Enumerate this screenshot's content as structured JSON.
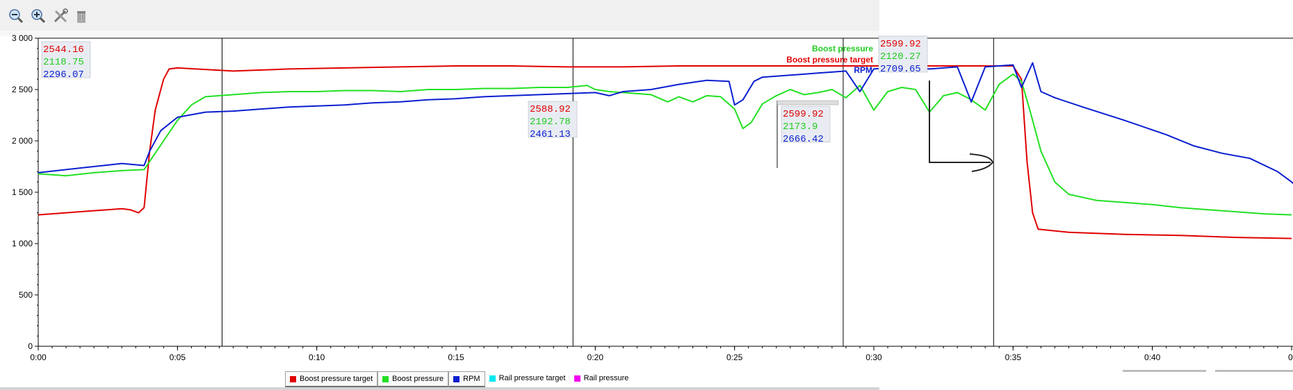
{
  "toolbar": {
    "buttons": [
      "zoom-out",
      "zoom-in",
      "settings",
      "delete"
    ]
  },
  "chart_data": {
    "type": "line",
    "xlabel": "",
    "ylabel": "",
    "xlim": [
      0,
      45
    ],
    "ylim": [
      0,
      3000
    ],
    "x_ticks": [
      {
        "v": 0,
        "label": "0:00"
      },
      {
        "v": 5,
        "label": "0:05"
      },
      {
        "v": 10,
        "label": "0:10"
      },
      {
        "v": 15,
        "label": "0:15"
      },
      {
        "v": 20,
        "label": "0:20"
      },
      {
        "v": 25,
        "label": "0:25"
      },
      {
        "v": 30,
        "label": "0:30"
      },
      {
        "v": 35,
        "label": "0:35"
      },
      {
        "v": 40,
        "label": "0:40"
      },
      {
        "v": 45,
        "label": "0:"
      }
    ],
    "y_ticks": [
      {
        "v": 0,
        "label": "0"
      },
      {
        "v": 500,
        "label": "500"
      },
      {
        "v": 1000,
        "label": "1 000"
      },
      {
        "v": 1500,
        "label": "1 500"
      },
      {
        "v": 2000,
        "label": "2 000"
      },
      {
        "v": 2500,
        "label": "2 500"
      },
      {
        "v": 3000,
        "label": "3 000"
      }
    ],
    "grid": false,
    "series": [
      {
        "name": "Boost pressure target",
        "color": "#e00000",
        "points": [
          [
            0,
            1280
          ],
          [
            1,
            1300
          ],
          [
            2,
            1320
          ],
          [
            2.5,
            1330
          ],
          [
            3,
            1340
          ],
          [
            3.3,
            1330
          ],
          [
            3.6,
            1300
          ],
          [
            3.8,
            1350
          ],
          [
            4.0,
            1900
          ],
          [
            4.2,
            2300
          ],
          [
            4.5,
            2600
          ],
          [
            4.7,
            2700
          ],
          [
            5,
            2710
          ],
          [
            7,
            2680
          ],
          [
            9,
            2700
          ],
          [
            11,
            2710
          ],
          [
            13,
            2720
          ],
          [
            15,
            2730
          ],
          [
            17,
            2730
          ],
          [
            19,
            2720
          ],
          [
            20,
            2720
          ],
          [
            21,
            2720
          ],
          [
            23,
            2730
          ],
          [
            25,
            2730
          ],
          [
            27,
            2730
          ],
          [
            29,
            2730
          ],
          [
            31,
            2730
          ],
          [
            33,
            2730
          ],
          [
            35,
            2730
          ],
          [
            35.3,
            2600
          ],
          [
            35.5,
            1800
          ],
          [
            35.7,
            1300
          ],
          [
            35.9,
            1140
          ],
          [
            37,
            1110
          ],
          [
            39,
            1090
          ],
          [
            41,
            1080
          ],
          [
            43,
            1060
          ],
          [
            45,
            1050
          ]
        ]
      },
      {
        "name": "Boost pressure",
        "color": "#22e022",
        "points": [
          [
            0,
            1680
          ],
          [
            1,
            1660
          ],
          [
            2,
            1690
          ],
          [
            3,
            1710
          ],
          [
            3.8,
            1720
          ],
          [
            4.0,
            1800
          ],
          [
            4.5,
            2000
          ],
          [
            5,
            2200
          ],
          [
            5.5,
            2350
          ],
          [
            6,
            2430
          ],
          [
            7,
            2450
          ],
          [
            8,
            2470
          ],
          [
            9,
            2480
          ],
          [
            10,
            2480
          ],
          [
            11,
            2490
          ],
          [
            12,
            2490
          ],
          [
            13,
            2480
          ],
          [
            14,
            2500
          ],
          [
            15,
            2500
          ],
          [
            16,
            2510
          ],
          [
            17,
            2510
          ],
          [
            18,
            2520
          ],
          [
            19,
            2520
          ],
          [
            19.7,
            2540
          ],
          [
            20,
            2500
          ],
          [
            20.5,
            2480
          ],
          [
            21,
            2470
          ],
          [
            22,
            2450
          ],
          [
            22.6,
            2380
          ],
          [
            23,
            2430
          ],
          [
            23.5,
            2380
          ],
          [
            24,
            2440
          ],
          [
            24.5,
            2430
          ],
          [
            25,
            2310
          ],
          [
            25.3,
            2120
          ],
          [
            25.6,
            2180
          ],
          [
            26,
            2360
          ],
          [
            26.5,
            2440
          ],
          [
            27,
            2500
          ],
          [
            27.5,
            2450
          ],
          [
            28,
            2470
          ],
          [
            28.5,
            2500
          ],
          [
            29,
            2420
          ],
          [
            29.5,
            2540
          ],
          [
            30,
            2300
          ],
          [
            30.5,
            2480
          ],
          [
            31,
            2520
          ],
          [
            31.5,
            2500
          ],
          [
            32,
            2280
          ],
          [
            32.5,
            2440
          ],
          [
            33,
            2470
          ],
          [
            33.5,
            2400
          ],
          [
            34,
            2300
          ],
          [
            34.5,
            2550
          ],
          [
            35,
            2650
          ],
          [
            35.3,
            2580
          ],
          [
            35.6,
            2300
          ],
          [
            36,
            1900
          ],
          [
            36.5,
            1600
          ],
          [
            37,
            1480
          ],
          [
            38,
            1420
          ],
          [
            39,
            1400
          ],
          [
            40,
            1380
          ],
          [
            41,
            1350
          ],
          [
            42,
            1330
          ],
          [
            43,
            1310
          ],
          [
            44,
            1290
          ],
          [
            45,
            1280
          ]
        ]
      },
      {
        "name": "RPM",
        "color": "#0a1ed0",
        "points": [
          [
            0,
            1690
          ],
          [
            1,
            1720
          ],
          [
            2,
            1750
          ],
          [
            3,
            1780
          ],
          [
            3.8,
            1760
          ],
          [
            4.0,
            1900
          ],
          [
            4.4,
            2100
          ],
          [
            5,
            2230
          ],
          [
            6,
            2280
          ],
          [
            7,
            2290
          ],
          [
            8,
            2310
          ],
          [
            9,
            2330
          ],
          [
            10,
            2340
          ],
          [
            11,
            2350
          ],
          [
            12,
            2370
          ],
          [
            13,
            2380
          ],
          [
            14,
            2400
          ],
          [
            15,
            2410
          ],
          [
            16,
            2430
          ],
          [
            17,
            2440
          ],
          [
            18,
            2450
          ],
          [
            19,
            2460
          ],
          [
            20,
            2470
          ],
          [
            20.5,
            2440
          ],
          [
            21,
            2480
          ],
          [
            22,
            2500
          ],
          [
            23,
            2550
          ],
          [
            24,
            2590
          ],
          [
            24.8,
            2580
          ],
          [
            25,
            2350
          ],
          [
            25.3,
            2400
          ],
          [
            25.7,
            2580
          ],
          [
            26,
            2620
          ],
          [
            27,
            2640
          ],
          [
            28,
            2660
          ],
          [
            29,
            2680
          ],
          [
            29.5,
            2480
          ],
          [
            30,
            2700
          ],
          [
            31,
            2720
          ],
          [
            32,
            2700
          ],
          [
            33,
            2720
          ],
          [
            33.5,
            2380
          ],
          [
            34,
            2720
          ],
          [
            35,
            2740
          ],
          [
            35.3,
            2520
          ],
          [
            35.7,
            2760
          ],
          [
            36,
            2480
          ],
          [
            36.5,
            2420
          ],
          [
            37.5,
            2330
          ],
          [
            39,
            2200
          ],
          [
            40.5,
            2060
          ],
          [
            41.5,
            1950
          ],
          [
            42.5,
            1880
          ],
          [
            43.5,
            1830
          ],
          [
            44.5,
            1700
          ],
          [
            45,
            1600
          ],
          [
            45.3,
            1520
          ]
        ]
      },
      {
        "name": "Rail pressure target",
        "color": "#00e8f0",
        "points": []
      },
      {
        "name": "Rail pressure",
        "color": "#f000f0",
        "points": []
      }
    ],
    "cursors": [
      6.6,
      19.2,
      28.9,
      34.3
    ],
    "readouts": [
      {
        "values": [
          "2544.16",
          "2118.75",
          "2296.07"
        ]
      },
      {
        "values": [
          "2588.92",
          "2192.78",
          "2461.13"
        ]
      },
      {
        "values": [
          "2599.92",
          "2173.9",
          "2666.42"
        ]
      },
      {
        "values": [
          "2599.92",
          "2120.27",
          "2709.65"
        ]
      }
    ],
    "inline_labels": [
      "Boost pressure",
      "Boost pressure target",
      "RPM"
    ]
  },
  "legend": [
    {
      "label": "Boost pressure target",
      "color": "#e00000",
      "boxed": true
    },
    {
      "label": "Boost pressure",
      "color": "#22e022",
      "boxed": true
    },
    {
      "label": "RPM",
      "color": "#0a1ed0",
      "boxed": true
    },
    {
      "label": "Rail pressure target",
      "color": "#00e8f0",
      "boxed": false
    },
    {
      "label": "Rail pressure",
      "color": "#f000f0",
      "boxed": false
    }
  ]
}
